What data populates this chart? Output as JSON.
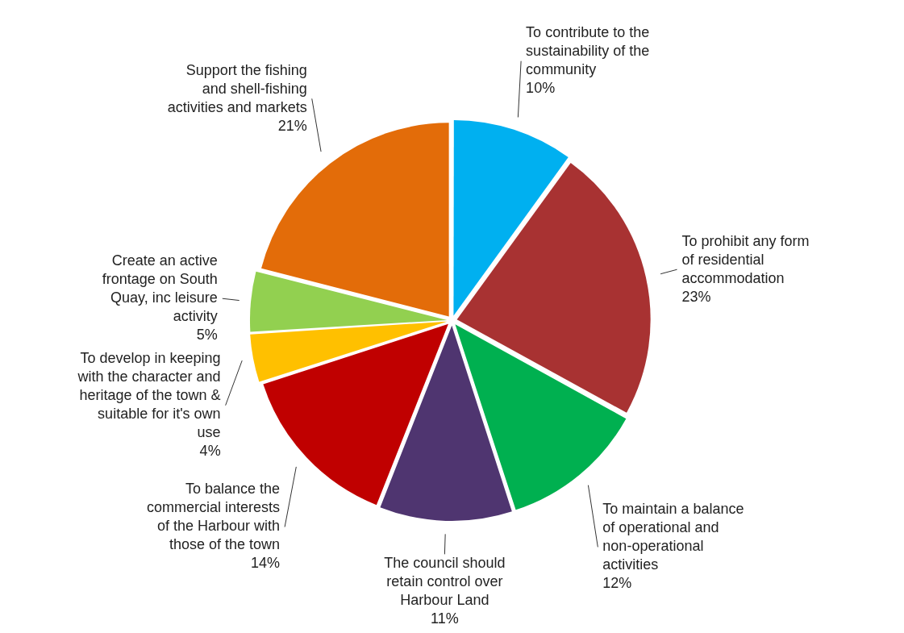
{
  "chart_data": {
    "type": "pie",
    "categories": [
      "To contribute to the\nsustainability of the\ncommunity",
      "To prohibit any form\nof residential\naccommodation",
      "To maintain a balance\nof operational and\nnon-operational\nactivities",
      "The council should\nretain control over\nHarbour Land",
      "To balance the\ncommercial interests\nof the Harbour with\nthose of the town",
      "To develop in keeping\nwith the character and\nheritage of the town &\nsuitable for it's own\nuse",
      "Create an active\nfrontage on South\nQuay, inc leisure\nactivity",
      "Support the fishing\nand shell-fishing\nactivities and markets"
    ],
    "values": [
      10,
      23,
      12,
      11,
      14,
      4,
      5,
      21
    ],
    "value_labels": [
      "10%",
      "23%",
      "12%",
      "11%",
      "14%",
      "4%",
      "5%",
      "21%"
    ],
    "colors": [
      "#00b0f0",
      "#a83232",
      "#00b050",
      "#4f3570",
      "#c00000",
      "#ffc000",
      "#92d050",
      "#e36c09"
    ]
  }
}
